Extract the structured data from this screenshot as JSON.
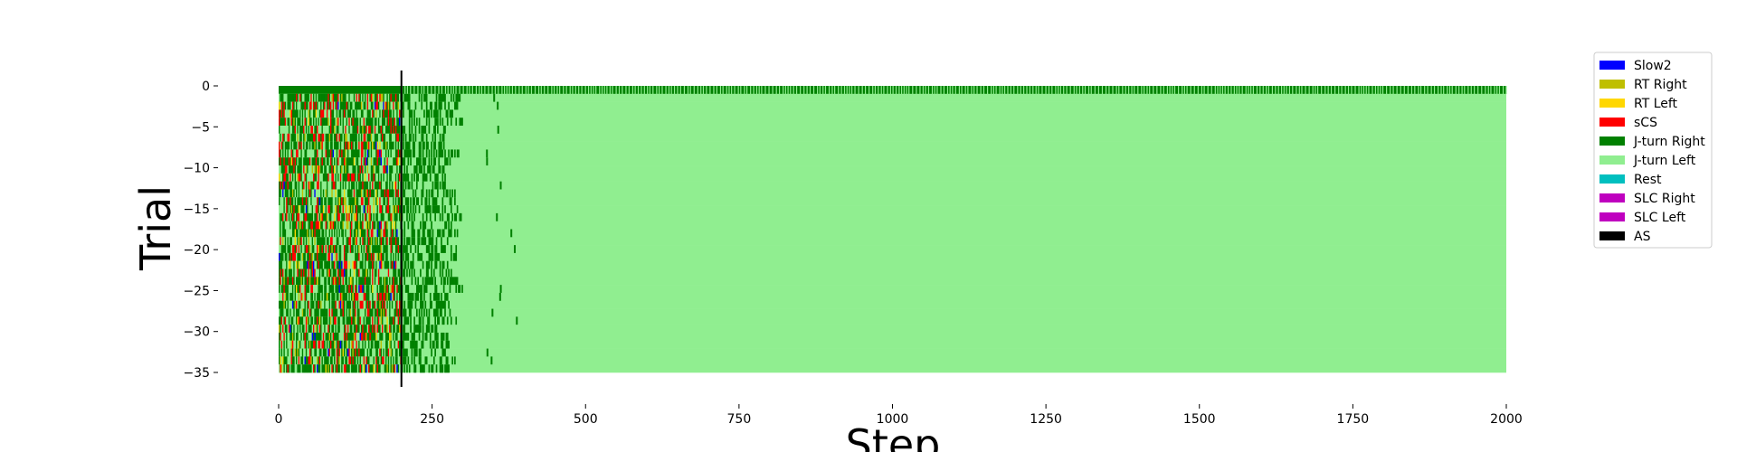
{
  "chart_data": {
    "type": "heatmap",
    "title": "",
    "xlabel": "Step",
    "ylabel": "Trial",
    "xlim": [
      0,
      2000
    ],
    "ylim": [
      -35,
      0
    ],
    "x_ticks": [
      0,
      250,
      500,
      750,
      1000,
      1250,
      1500,
      1750,
      2000
    ],
    "y_ticks": [
      0,
      -5,
      -10,
      -15,
      -20,
      -25,
      -30,
      -35
    ],
    "grid": false,
    "legend_position": "outside-right",
    "vertical_marker": {
      "x": 200,
      "color": "#000000"
    },
    "categories": [
      {
        "name": "Slow2",
        "color": "#0000ff"
      },
      {
        "name": "RT Right",
        "color": "#bfbf00"
      },
      {
        "name": "RT Left",
        "color": "#ffd700"
      },
      {
        "name": "sCS",
        "color": "#ff0000"
      },
      {
        "name": "J-turn Right",
        "color": "#008000"
      },
      {
        "name": "J-turn Left",
        "color": "#90ee90"
      },
      {
        "name": "Rest",
        "color": "#00bfbf"
      },
      {
        "name": "SLC Right",
        "color": "#bf00bf"
      },
      {
        "name": "SLC Left",
        "color": "#bf00bf"
      },
      {
        "name": "AS",
        "color": "#000000"
      }
    ],
    "trials": {
      "from": 0,
      "to": -35,
      "count": 36
    },
    "steps": 2000,
    "regions": {
      "mixed_exploration_end_step": 200,
      "transition_end_step": 270,
      "steady_state_category": "J-turn Left",
      "trial_0_category": "J-turn Right"
    }
  }
}
